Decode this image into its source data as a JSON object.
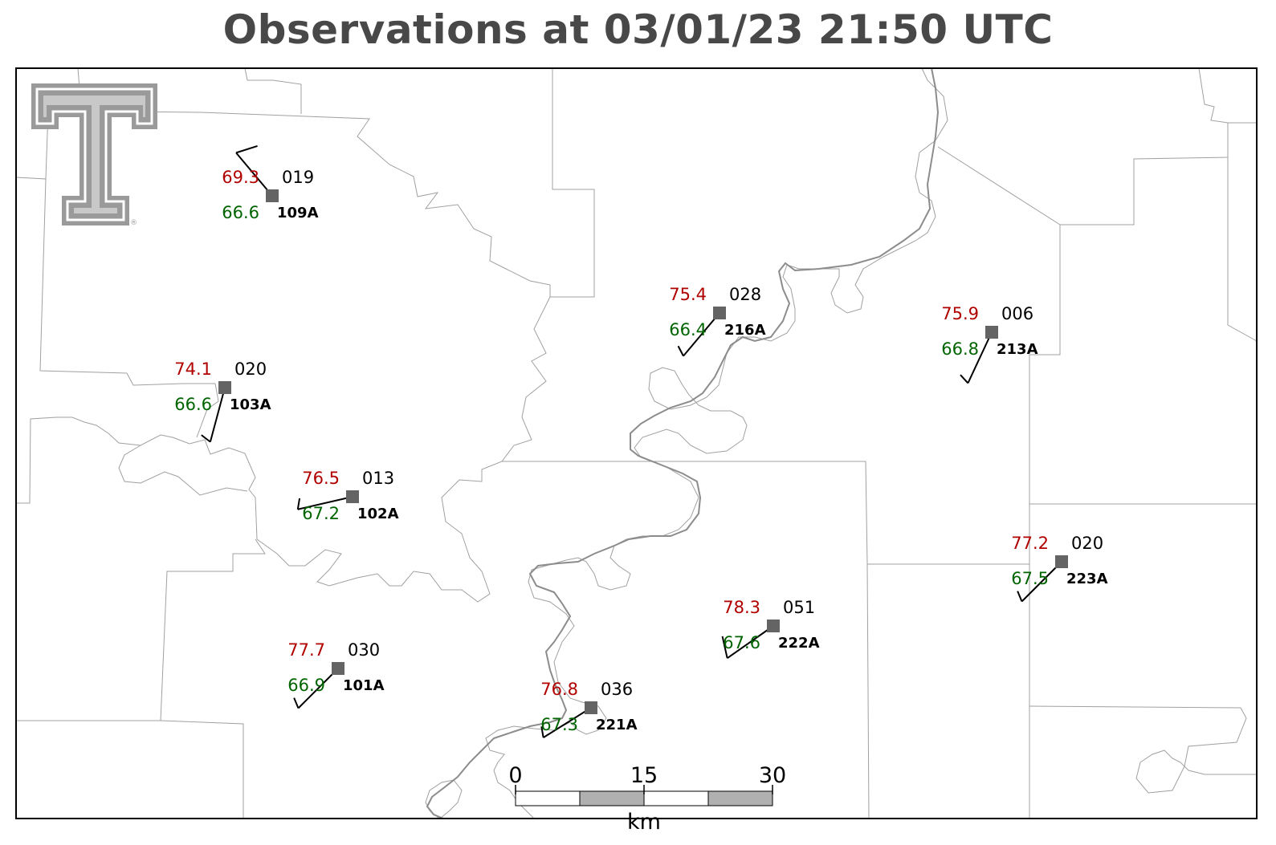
{
  "title": "Observations at 03/01/23 21:50 UTC",
  "colors": {
    "temperature": "#b00000",
    "dewpoint": "#006400",
    "station_marker": "#646464",
    "boundary": "#a0a0a0",
    "river": "#8c8c8c",
    "title": "#484848"
  },
  "logo": {
    "icon": "texas-tech-double-t-logo"
  },
  "stations": [
    {
      "id": "109A",
      "temp": "69.3",
      "dew": "66.6",
      "pressure": "019",
      "wind_dir": 320,
      "wind_speed_kt": 10
    },
    {
      "id": "103A",
      "temp": "74.1",
      "dew": "66.6",
      "pressure": "020",
      "wind_dir": 195,
      "wind_speed_kt": 5
    },
    {
      "id": "102A",
      "temp": "76.5",
      "dew": "67.2",
      "pressure": "013",
      "wind_dir": 257,
      "wind_speed_kt": 5
    },
    {
      "id": "101A",
      "temp": "77.7",
      "dew": "66.9",
      "pressure": "030",
      "wind_dir": 225,
      "wind_speed_kt": 5
    },
    {
      "id": "216A",
      "temp": "75.4",
      "dew": "66.4",
      "pressure": "028",
      "wind_dir": 220,
      "wind_speed_kt": 5
    },
    {
      "id": "213A",
      "temp": "75.9",
      "dew": "66.8",
      "pressure": "006",
      "wind_dir": 205,
      "wind_speed_kt": 5
    },
    {
      "id": "221A",
      "temp": "76.8",
      "dew": "67.3",
      "pressure": "036",
      "wind_dir": 238,
      "wind_speed_kt": 5
    },
    {
      "id": "222A",
      "temp": "78.3",
      "dew": "67.6",
      "pressure": "051",
      "wind_dir": 235,
      "wind_speed_kt": 10
    },
    {
      "id": "223A",
      "temp": "77.2",
      "dew": "67.5",
      "pressure": "020",
      "wind_dir": 225,
      "wind_speed_kt": 5
    }
  ],
  "scale_bar": {
    "ticks": [
      "0",
      "15",
      "30"
    ],
    "unit": "km"
  }
}
